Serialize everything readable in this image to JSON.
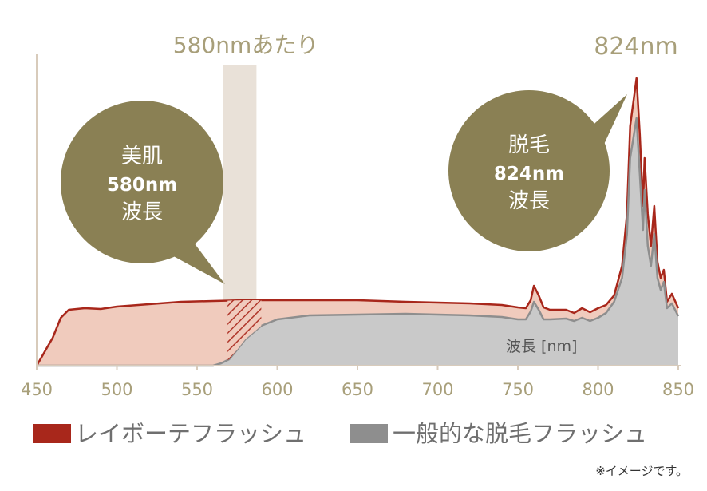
{
  "chart_data": {
    "type": "area",
    "xlim": [
      450,
      850
    ],
    "x_ticks": [
      "450",
      "500",
      "550",
      "600",
      "650",
      "700",
      "750",
      "800",
      "850"
    ],
    "highlight": {
      "label": "580nmあたり",
      "range": [
        570,
        590
      ]
    },
    "peak_label": "824nm",
    "axis_label": "波長 [nm]",
    "bubbles": [
      {
        "name": "beauty",
        "lines": [
          "美肌",
          "580nm",
          "波長"
        ]
      },
      {
        "name": "hair-removal",
        "lines": [
          "脱毛",
          "824nm",
          "波長"
        ]
      }
    ],
    "series": [
      {
        "name": "レイボーテフラッシュ",
        "color": "#a8271b",
        "fill": "#f0cbbd",
        "points": [
          [
            450,
            0
          ],
          [
            460,
            35
          ],
          [
            465,
            60
          ],
          [
            470,
            70
          ],
          [
            480,
            72
          ],
          [
            490,
            71
          ],
          [
            500,
            74
          ],
          [
            520,
            77
          ],
          [
            540,
            80
          ],
          [
            560,
            81
          ],
          [
            580,
            82
          ],
          [
            600,
            82
          ],
          [
            620,
            82
          ],
          [
            650,
            82
          ],
          [
            680,
            80
          ],
          [
            700,
            79
          ],
          [
            720,
            78
          ],
          [
            740,
            76
          ],
          [
            750,
            73
          ],
          [
            755,
            72
          ],
          [
            758,
            82
          ],
          [
            760,
            100
          ],
          [
            763,
            88
          ],
          [
            766,
            73
          ],
          [
            770,
            70
          ],
          [
            780,
            70
          ],
          [
            785,
            66
          ],
          [
            790,
            72
          ],
          [
            795,
            67
          ],
          [
            800,
            72
          ],
          [
            805,
            76
          ],
          [
            810,
            88
          ],
          [
            815,
            125
          ],
          [
            818,
            190
          ],
          [
            820,
            300
          ],
          [
            822,
            330
          ],
          [
            824,
            360
          ],
          [
            826,
            290
          ],
          [
            828,
            200
          ],
          [
            829,
            260
          ],
          [
            831,
            190
          ],
          [
            833,
            150
          ],
          [
            835,
            200
          ],
          [
            837,
            130
          ],
          [
            839,
            110
          ],
          [
            841,
            120
          ],
          [
            843,
            80
          ],
          [
            846,
            90
          ],
          [
            850,
            72
          ]
        ]
      },
      {
        "name": "一般的な脱毛フラッシュ",
        "color": "#8e8e8e",
        "fill": "#c9c9c9",
        "points": [
          [
            450,
            0
          ],
          [
            560,
            0
          ],
          [
            565,
            3
          ],
          [
            570,
            8
          ],
          [
            575,
            20
          ],
          [
            580,
            33
          ],
          [
            590,
            50
          ],
          [
            600,
            58
          ],
          [
            620,
            63
          ],
          [
            650,
            64
          ],
          [
            680,
            65
          ],
          [
            700,
            64
          ],
          [
            720,
            63
          ],
          [
            740,
            61
          ],
          [
            750,
            58
          ],
          [
            755,
            58
          ],
          [
            758,
            68
          ],
          [
            760,
            80
          ],
          [
            763,
            70
          ],
          [
            766,
            58
          ],
          [
            770,
            58
          ],
          [
            780,
            59
          ],
          [
            785,
            56
          ],
          [
            790,
            60
          ],
          [
            795,
            56
          ],
          [
            800,
            60
          ],
          [
            805,
            66
          ],
          [
            810,
            80
          ],
          [
            815,
            110
          ],
          [
            818,
            165
          ],
          [
            820,
            260
          ],
          [
            822,
            285
          ],
          [
            824,
            310
          ],
          [
            826,
            240
          ],
          [
            828,
            170
          ],
          [
            829,
            220
          ],
          [
            831,
            150
          ],
          [
            833,
            125
          ],
          [
            835,
            165
          ],
          [
            837,
            110
          ],
          [
            839,
            95
          ],
          [
            841,
            105
          ],
          [
            843,
            72
          ],
          [
            846,
            78
          ],
          [
            850,
            62
          ]
        ]
      }
    ]
  },
  "legend": {
    "items": [
      {
        "label": "レイボーテフラッシュ",
        "color": "#a8271b"
      },
      {
        "label": "一般的な脱毛フラッシュ",
        "color": "#8e8e8e"
      }
    ]
  },
  "colors": {
    "axis": "#d8cbbb",
    "tick_text": "#a89f7a",
    "highlight": "#e9e1d8",
    "bubble": "#8a8054"
  },
  "note": "※イメージです。"
}
